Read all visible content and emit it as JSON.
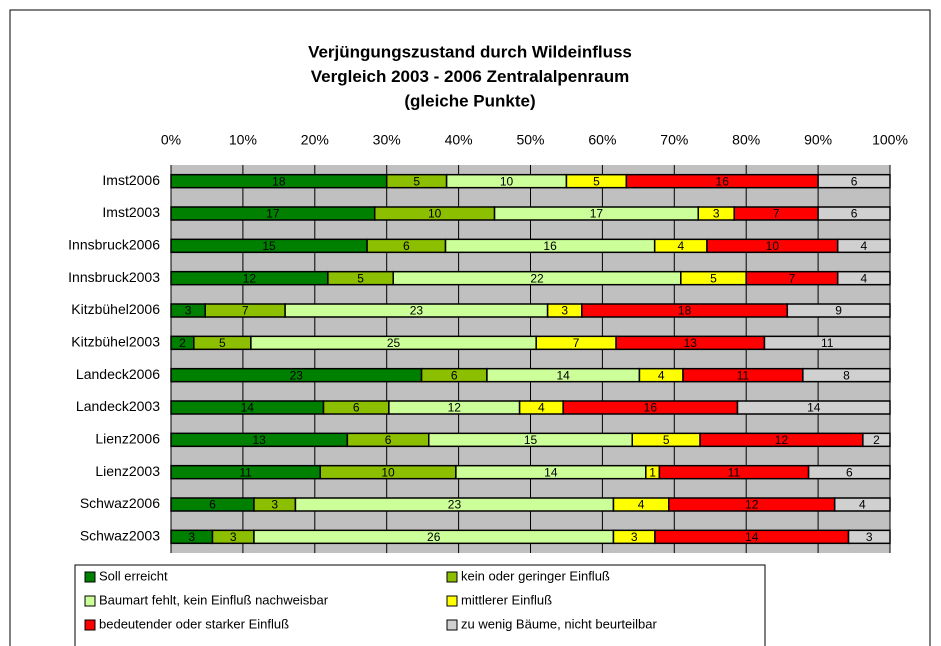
{
  "chart_data": {
    "type": "bar",
    "orientation": "horizontal",
    "stacked": true,
    "normalized": true,
    "title": [
      "Verjüngungszustand durch Wildeinfluss",
      "Vergleich 2003 - 2006 Zentralalpenraum",
      "(gleiche Punkte)"
    ],
    "categories": [
      "Imst2006",
      "Imst2003",
      "Innsbruck2006",
      "Innsbruck2003",
      "Kitzbühel2006",
      "Kitzbühel2003",
      "Landeck2006",
      "Landeck2003",
      "Lienz2006",
      "Lienz2003",
      "Schwaz2006",
      "Schwaz2003"
    ],
    "series": [
      {
        "name": "Soll erreicht",
        "color": "#008000",
        "values": [
          18,
          17,
          15,
          12,
          3,
          2,
          23,
          14,
          13,
          11,
          6,
          3
        ]
      },
      {
        "name": "kein oder geringer Einfluß",
        "color": "#8cbf00",
        "values": [
          5,
          10,
          6,
          5,
          7,
          5,
          6,
          6,
          6,
          10,
          3,
          3
        ]
      },
      {
        "name": "Baumart fehlt, kein Einfluß nachweisbar",
        "color": "#ccff99",
        "values": [
          10,
          17,
          16,
          22,
          23,
          25,
          14,
          12,
          15,
          14,
          23,
          26
        ]
      },
      {
        "name": "mittlerer Einfluß",
        "color": "#ffff00",
        "values": [
          5,
          3,
          4,
          5,
          3,
          7,
          4,
          4,
          5,
          1,
          4,
          3
        ]
      },
      {
        "name": "bedeutender oder starker Einfluß",
        "color": "#ff0000",
        "values": [
          16,
          7,
          10,
          7,
          18,
          13,
          11,
          16,
          12,
          11,
          12,
          14
        ]
      },
      {
        "name": "zu wenig Bäume, nicht beurteilbar",
        "color": "#d0d0d0",
        "values": [
          6,
          6,
          4,
          4,
          9,
          11,
          8,
          14,
          2,
          6,
          4,
          3
        ]
      }
    ],
    "xlim": [
      0,
      100
    ],
    "xticks": [
      {
        "value": 0,
        "label": "0%"
      },
      {
        "value": 10,
        "label": "10%"
      },
      {
        "value": 20,
        "label": "20%"
      },
      {
        "value": 30,
        "label": "30%"
      },
      {
        "value": 40,
        "label": "40%"
      },
      {
        "value": 50,
        "label": "50%"
      },
      {
        "value": 60,
        "label": "60%"
      },
      {
        "value": 70,
        "label": "70%"
      },
      {
        "value": 80,
        "label": "80%"
      },
      {
        "value": 90,
        "label": "90%"
      },
      {
        "value": 100,
        "label": "100%"
      }
    ],
    "grid": true,
    "legend": "bottom"
  }
}
